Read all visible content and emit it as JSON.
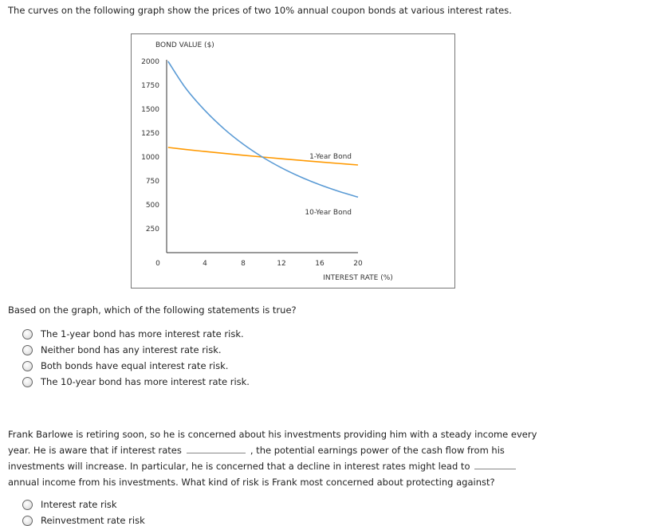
{
  "intro": "The curves on the following graph show the prices of two 10% annual coupon bonds at various interest rates.",
  "chart_data": {
    "type": "line",
    "ylabel": "BOND VALUE ($)",
    "xlabel": "INTEREST RATE (%)",
    "xlim": [
      0,
      20
    ],
    "ylim": [
      0,
      2000
    ],
    "xticks": [
      "0",
      "4",
      "8",
      "12",
      "16",
      "20"
    ],
    "yticks": [
      "2000",
      "1750",
      "1500",
      "1250",
      "1000",
      "750",
      "500",
      "250"
    ],
    "grid": false,
    "x": [
      0,
      2,
      4,
      6,
      8,
      10,
      12,
      14,
      16,
      18,
      20
    ],
    "series": [
      {
        "name": "1-Year Bond",
        "color": "#ff9900",
        "values": [
          1100,
          1078.4,
          1057.7,
          1037.7,
          1018.5,
          1000,
          982.1,
          964.9,
          948.3,
          932.2,
          916.7
        ]
      },
      {
        "name": "10-Year Bond",
        "color": "#5b9bd5",
        "values": [
          2000,
          1718.6,
          1486.7,
          1294.4,
          1134.2,
          1000,
          887.0,
          791.4,
          710.0,
          640.5,
          580.6
        ]
      }
    ]
  },
  "q1": {
    "prompt": "Based on the graph, which of the following statements is true?",
    "options": [
      "The 1-year bond has more interest rate risk.",
      "Neither bond has any interest rate risk.",
      "Both bonds have equal interest rate risk.",
      "The 10-year bond has more interest rate risk."
    ]
  },
  "q2": {
    "line1": "Frank Barlowe is retiring soon, so he is concerned about his investments providing him with a steady income every",
    "line2a": "year. He is aware that if interest rates",
    "line2b": ", the potential earnings power of the cash flow from his",
    "line3": "investments will increase. In particular, he is concerned that a decline in interest rates might lead to",
    "line4": "annual income from his investments. What kind of risk is Frank most concerned about protecting against?",
    "options": [
      "Interest rate risk",
      "Reinvestment rate risk"
    ]
  }
}
